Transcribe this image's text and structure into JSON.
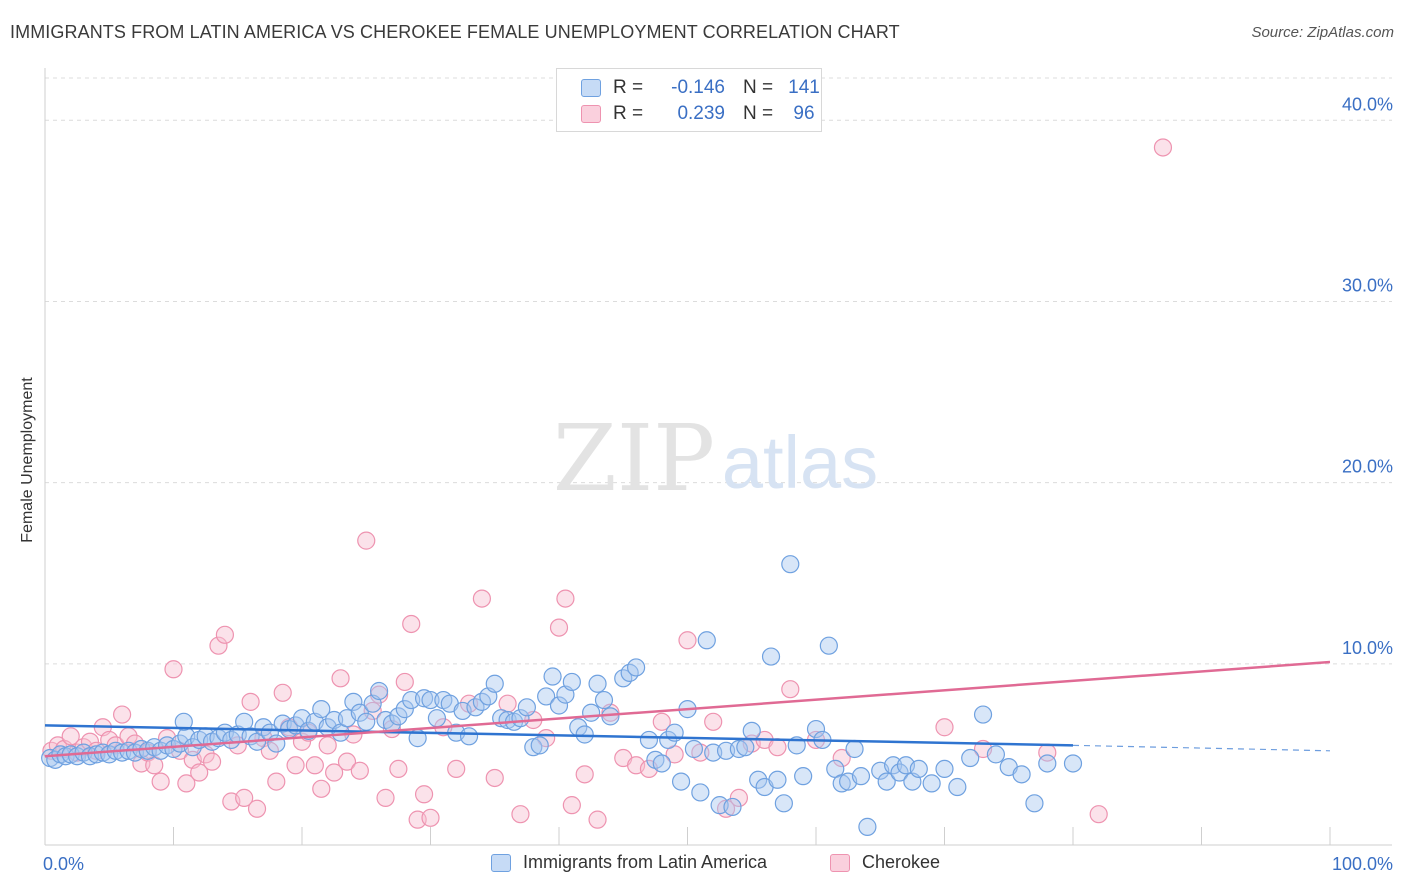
{
  "header": {
    "title": "IMMIGRANTS FROM LATIN AMERICA VS CHEROKEE FEMALE UNEMPLOYMENT CORRELATION CHART",
    "source": "Source: ZipAtlas.com"
  },
  "watermark": {
    "part1": "ZIP",
    "part2": "atlas"
  },
  "legend": {
    "rows": [
      {
        "r_label": "R =",
        "r_value": "-0.146",
        "n_label": "N =",
        "n_value": "141"
      },
      {
        "r_label": "R =",
        "r_value": "0.239",
        "n_label": "N =",
        "n_value": "96"
      }
    ]
  },
  "colors": {
    "blue_fill": "#a9c8f0",
    "blue_stroke": "#6fa1e0",
    "blue_line": "#2f74d0",
    "pink_fill": "#f7bfd0",
    "pink_stroke": "#ee93b0",
    "pink_line": "#e06a94",
    "tick_label": "#3a6fc4"
  },
  "chart_data": {
    "type": "scatter",
    "title": "IMMIGRANTS FROM LATIN AMERICA VS CHEROKEE FEMALE UNEMPLOYMENT CORRELATION CHART",
    "xlabel": "",
    "ylabel": "Female Unemployment",
    "xlim": [
      0,
      100
    ],
    "ylim": [
      0,
      42.5
    ],
    "x_tick_labels": [
      "0.0%",
      "100.0%"
    ],
    "y_ticks": [
      10,
      20,
      30,
      40
    ],
    "y_tick_labels": [
      "10.0%",
      "20.0%",
      "30.0%",
      "40.0%"
    ],
    "grid": "horizontal dashed",
    "legend_position": "bottom",
    "series": [
      {
        "name": "Immigrants from Latin America",
        "color": "#6fa1e0",
        "trend": {
          "x": [
            0,
            80
          ],
          "y": [
            6.6,
            5.5
          ],
          "dashed_extension": {
            "x": [
              80,
              100
            ],
            "y": [
              5.5,
              5.2
            ]
          }
        },
        "points": [
          [
            0.4,
            4.8
          ],
          [
            0.8,
            4.7
          ],
          [
            1.2,
            5.0
          ],
          [
            1.6,
            4.9
          ],
          [
            2.0,
            5.0
          ],
          [
            2.5,
            4.9
          ],
          [
            3.0,
            5.1
          ],
          [
            3.5,
            4.9
          ],
          [
            4.0,
            5.0
          ],
          [
            4.5,
            5.1
          ],
          [
            5.0,
            5.0
          ],
          [
            5.5,
            5.2
          ],
          [
            6.0,
            5.1
          ],
          [
            6.5,
            5.2
          ],
          [
            7.0,
            5.1
          ],
          [
            7.5,
            5.3
          ],
          [
            8.0,
            5.2
          ],
          [
            8.5,
            5.4
          ],
          [
            9.0,
            5.2
          ],
          [
            9.5,
            5.5
          ],
          [
            10.0,
            5.3
          ],
          [
            10.5,
            5.6
          ],
          [
            11.0,
            6.0
          ],
          [
            10.8,
            6.8
          ],
          [
            11.5,
            5.4
          ],
          [
            12.0,
            5.8
          ],
          [
            12.5,
            6.0
          ],
          [
            13.0,
            5.7
          ],
          [
            13.5,
            5.9
          ],
          [
            14.0,
            6.2
          ],
          [
            14.5,
            5.8
          ],
          [
            15.0,
            6.1
          ],
          [
            15.5,
            6.8
          ],
          [
            16.0,
            6.0
          ],
          [
            16.5,
            5.7
          ],
          [
            17.0,
            6.5
          ],
          [
            17.5,
            6.2
          ],
          [
            18.0,
            5.6
          ],
          [
            18.5,
            6.7
          ],
          [
            19.0,
            6.4
          ],
          [
            19.5,
            6.6
          ],
          [
            20.0,
            7.0
          ],
          [
            20.5,
            6.3
          ],
          [
            21.0,
            6.8
          ],
          [
            21.5,
            7.5
          ],
          [
            22.0,
            6.5
          ],
          [
            22.5,
            6.9
          ],
          [
            23.0,
            6.2
          ],
          [
            23.5,
            7.0
          ],
          [
            24.0,
            7.9
          ],
          [
            24.5,
            7.3
          ],
          [
            25.0,
            6.8
          ],
          [
            25.5,
            7.8
          ],
          [
            26.0,
            8.5
          ],
          [
            26.5,
            6.9
          ],
          [
            27.0,
            6.7
          ],
          [
            27.5,
            7.1
          ],
          [
            28.0,
            7.5
          ],
          [
            28.5,
            8.0
          ],
          [
            29.0,
            5.9
          ],
          [
            29.5,
            8.1
          ],
          [
            30.0,
            8.0
          ],
          [
            30.5,
            7.0
          ],
          [
            31.0,
            8.0
          ],
          [
            31.5,
            7.8
          ],
          [
            32.0,
            6.2
          ],
          [
            32.5,
            7.4
          ],
          [
            33.0,
            6.0
          ],
          [
            33.5,
            7.6
          ],
          [
            34.0,
            7.9
          ],
          [
            34.5,
            8.2
          ],
          [
            35.0,
            8.9
          ],
          [
            35.5,
            7.0
          ],
          [
            36.0,
            6.9
          ],
          [
            36.5,
            6.8
          ],
          [
            37.0,
            7.0
          ],
          [
            37.5,
            7.6
          ],
          [
            38.0,
            5.4
          ],
          [
            38.5,
            5.5
          ],
          [
            39.0,
            8.2
          ],
          [
            39.5,
            9.3
          ],
          [
            40.0,
            7.7
          ],
          [
            40.5,
            8.3
          ],
          [
            41.0,
            9.0
          ],
          [
            41.5,
            6.5
          ],
          [
            42.0,
            6.1
          ],
          [
            42.5,
            7.3
          ],
          [
            43.0,
            8.9
          ],
          [
            43.5,
            8.0
          ],
          [
            44.0,
            7.1
          ],
          [
            45.0,
            9.2
          ],
          [
            45.5,
            9.5
          ],
          [
            46.0,
            9.8
          ],
          [
            47.0,
            5.8
          ],
          [
            47.5,
            4.7
          ],
          [
            48.0,
            4.5
          ],
          [
            48.5,
            5.8
          ],
          [
            49.0,
            6.2
          ],
          [
            49.5,
            3.5
          ],
          [
            50.0,
            7.5
          ],
          [
            50.5,
            5.3
          ],
          [
            51.0,
            2.9
          ],
          [
            51.5,
            11.3
          ],
          [
            52.0,
            5.1
          ],
          [
            52.5,
            2.2
          ],
          [
            53.0,
            5.2
          ],
          [
            53.5,
            2.1
          ],
          [
            54.0,
            5.3
          ],
          [
            54.5,
            5.4
          ],
          [
            55.0,
            6.3
          ],
          [
            55.5,
            3.6
          ],
          [
            56.0,
            3.2
          ],
          [
            56.5,
            10.4
          ],
          [
            57.0,
            3.6
          ],
          [
            57.5,
            2.3
          ],
          [
            58.0,
            15.5
          ],
          [
            58.5,
            5.5
          ],
          [
            59.0,
            3.8
          ],
          [
            60.0,
            6.4
          ],
          [
            60.5,
            5.8
          ],
          [
            61.0,
            11.0
          ],
          [
            61.5,
            4.2
          ],
          [
            62.0,
            3.4
          ],
          [
            62.5,
            3.5
          ],
          [
            63.0,
            5.3
          ],
          [
            63.5,
            3.8
          ],
          [
            64.0,
            1.0
          ],
          [
            65.0,
            4.1
          ],
          [
            65.5,
            3.5
          ],
          [
            66.0,
            4.4
          ],
          [
            66.5,
            4.0
          ],
          [
            67.0,
            4.4
          ],
          [
            67.5,
            3.5
          ],
          [
            68.0,
            4.2
          ],
          [
            69.0,
            3.4
          ],
          [
            70.0,
            4.2
          ],
          [
            71.0,
            3.2
          ],
          [
            72.0,
            4.8
          ],
          [
            73.0,
            7.2
          ],
          [
            74.0,
            5.0
          ],
          [
            75.0,
            4.3
          ],
          [
            76.0,
            3.9
          ],
          [
            77.0,
            2.3
          ],
          [
            78.0,
            4.5
          ],
          [
            80.0,
            4.5
          ]
        ]
      },
      {
        "name": "Cherokee",
        "color": "#ee93b0",
        "trend": {
          "x": [
            0,
            100
          ],
          "y": [
            4.9,
            10.1
          ]
        },
        "points": [
          [
            0.5,
            5.2
          ],
          [
            1.0,
            5.5
          ],
          [
            1.5,
            5.3
          ],
          [
            2.0,
            6.0
          ],
          [
            2.5,
            5.1
          ],
          [
            3.0,
            5.4
          ],
          [
            3.5,
            5.7
          ],
          [
            4.0,
            5.2
          ],
          [
            4.5,
            6.5
          ],
          [
            5.0,
            5.8
          ],
          [
            5.5,
            5.5
          ],
          [
            6.0,
            7.2
          ],
          [
            6.5,
            6.0
          ],
          [
            7.0,
            5.6
          ],
          [
            7.5,
            4.5
          ],
          [
            8.0,
            5.1
          ],
          [
            8.5,
            4.4
          ],
          [
            9.0,
            3.5
          ],
          [
            9.5,
            5.9
          ],
          [
            10.0,
            9.7
          ],
          [
            10.5,
            5.2
          ],
          [
            11.0,
            3.4
          ],
          [
            11.5,
            4.7
          ],
          [
            12.0,
            4.0
          ],
          [
            12.5,
            5.0
          ],
          [
            13.0,
            4.6
          ],
          [
            13.5,
            11.0
          ],
          [
            14.0,
            11.6
          ],
          [
            14.5,
            2.4
          ],
          [
            15.0,
            5.5
          ],
          [
            15.5,
            2.6
          ],
          [
            16.0,
            7.9
          ],
          [
            16.5,
            2.0
          ],
          [
            17.0,
            5.9
          ],
          [
            17.5,
            5.2
          ],
          [
            18.0,
            3.5
          ],
          [
            18.5,
            8.4
          ],
          [
            19.0,
            6.5
          ],
          [
            19.5,
            4.4
          ],
          [
            20.0,
            5.7
          ],
          [
            20.5,
            6.2
          ],
          [
            21.0,
            4.4
          ],
          [
            21.5,
            3.1
          ],
          [
            22.0,
            5.5
          ],
          [
            22.5,
            4.0
          ],
          [
            23.0,
            9.2
          ],
          [
            23.5,
            4.6
          ],
          [
            24.0,
            6.1
          ],
          [
            24.5,
            4.1
          ],
          [
            25.0,
            16.8
          ],
          [
            25.5,
            7.4
          ],
          [
            26.0,
            8.3
          ],
          [
            26.5,
            2.6
          ],
          [
            27.0,
            6.4
          ],
          [
            27.5,
            4.2
          ],
          [
            28.0,
            9.0
          ],
          [
            28.5,
            12.2
          ],
          [
            29.0,
            1.4
          ],
          [
            29.5,
            2.8
          ],
          [
            30.0,
            1.5
          ],
          [
            31.0,
            6.5
          ],
          [
            32.0,
            4.2
          ],
          [
            33.0,
            7.8
          ],
          [
            34.0,
            13.6
          ],
          [
            35.0,
            3.7
          ],
          [
            36.0,
            7.8
          ],
          [
            37.0,
            1.7
          ],
          [
            38.0,
            6.9
          ],
          [
            39.0,
            5.9
          ],
          [
            40.0,
            12.0
          ],
          [
            40.5,
            13.6
          ],
          [
            41.0,
            2.2
          ],
          [
            42.0,
            3.9
          ],
          [
            43.0,
            1.4
          ],
          [
            44.0,
            7.3
          ],
          [
            45.0,
            4.8
          ],
          [
            46.0,
            4.4
          ],
          [
            47.0,
            4.2
          ],
          [
            48.0,
            6.8
          ],
          [
            49.0,
            5.0
          ],
          [
            50.0,
            11.3
          ],
          [
            51.0,
            5.1
          ],
          [
            52.0,
            6.8
          ],
          [
            53.0,
            2.0
          ],
          [
            54.0,
            2.6
          ],
          [
            55.0,
            5.6
          ],
          [
            56.0,
            5.8
          ],
          [
            57.0,
            5.4
          ],
          [
            58.0,
            8.6
          ],
          [
            60.0,
            5.8
          ],
          [
            62.0,
            4.8
          ],
          [
            70.0,
            6.5
          ],
          [
            73.0,
            5.3
          ],
          [
            78.0,
            5.1
          ],
          [
            82.0,
            1.7
          ],
          [
            87.0,
            38.5
          ]
        ]
      }
    ]
  },
  "bottom_legend": {
    "items": [
      {
        "label": "Immigrants from Latin America"
      },
      {
        "label": "Cherokee"
      }
    ]
  }
}
